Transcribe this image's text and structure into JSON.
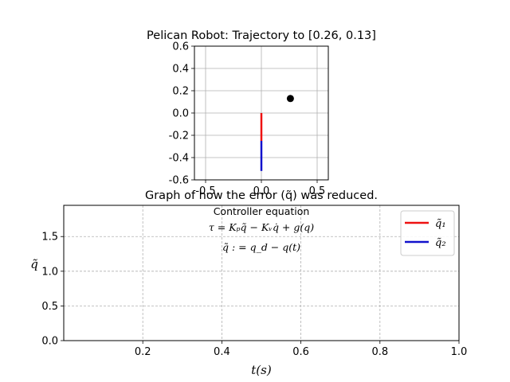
{
  "chart_data": [
    {
      "type": "line",
      "title": "Pelican Robot: Trajectory to [0.26, 0.13]",
      "xlabel": "",
      "ylabel": "",
      "xlim": [
        -0.6,
        0.6
      ],
      "ylim": [
        -0.6,
        0.6
      ],
      "x_ticks": [
        -0.5,
        0.0,
        0.5
      ],
      "x_tick_labels": [
        "-0.5",
        "0.0",
        "0.5"
      ],
      "y_ticks": [
        0.6,
        0.4,
        0.2,
        0.0,
        -0.2,
        -0.4,
        -0.6
      ],
      "y_tick_labels": [
        "0.6",
        "0.4",
        "0.2",
        "0.0",
        "-0.2",
        "-0.4",
        "-0.6"
      ],
      "grid": true,
      "series": [
        {
          "color": "#ee1111",
          "x": [
            0.0,
            0.0
          ],
          "y": [
            0.0,
            -0.25
          ]
        },
        {
          "color": "#1111cc",
          "x": [
            0.0,
            0.0
          ],
          "y": [
            -0.25,
            -0.52
          ]
        }
      ],
      "target_point": {
        "x": 0.26,
        "y": 0.13,
        "color": "#000000"
      }
    },
    {
      "type": "line",
      "title": "Graph of how the error (q̃) was reduced.",
      "xlabel": "t(s)",
      "ylabel": "q̃",
      "xlim": [
        0.0,
        1.0
      ],
      "ylim": [
        0.0,
        1.95
      ],
      "x_ticks": [
        0.2,
        0.4,
        0.6,
        0.8,
        1.0
      ],
      "x_tick_labels": [
        "0.2",
        "0.4",
        "0.6",
        "0.8",
        "1.0"
      ],
      "y_ticks": [
        0.0,
        0.5,
        1.0,
        1.5
      ],
      "y_tick_labels": [
        "0.0",
        "0.5",
        "1.0",
        "1.5"
      ],
      "grid": "dashed",
      "legend_position": "top-right",
      "series": [
        {
          "name": "q̃₁",
          "color": "#ee1111",
          "x": [],
          "y": []
        },
        {
          "name": "q̃₂",
          "color": "#1111cc",
          "x": [],
          "y": []
        }
      ],
      "annotation": {
        "line1": "Controller equation",
        "line2": "τ = Kₚq̃ − Kᵥq̇ + g(q)",
        "line3": "q̃ : = q_d − q(t)"
      }
    }
  ]
}
